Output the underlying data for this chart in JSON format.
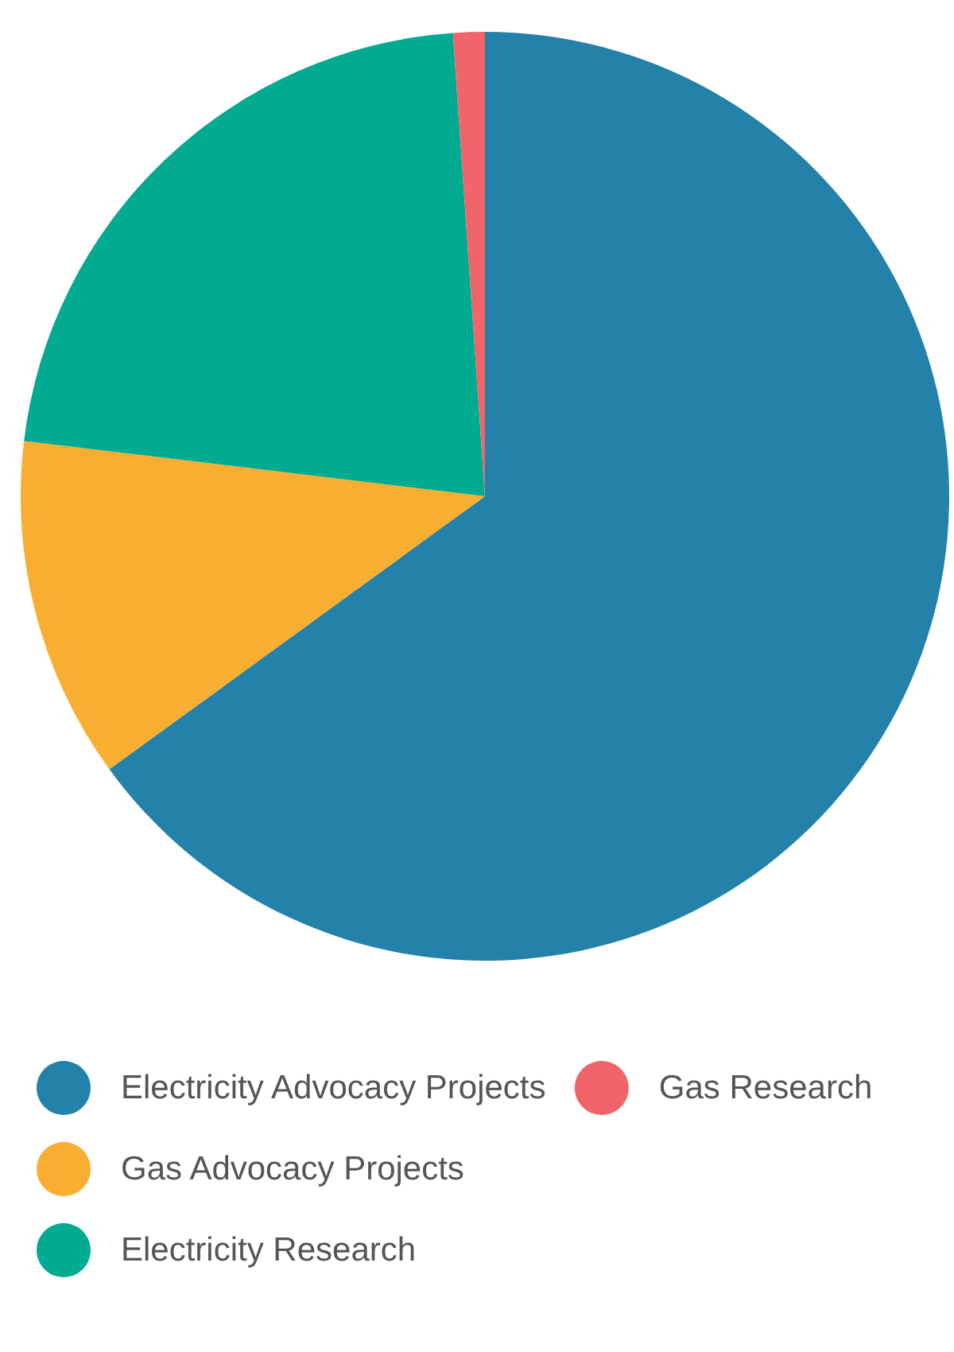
{
  "chart_data": {
    "type": "pie",
    "categories": [
      "Electricity Advocacy Projects",
      "Gas Advocacy Projects",
      "Electricity Research",
      "Gas Research"
    ],
    "values": [
      65.0,
      11.9,
      22.0,
      1.1
    ],
    "colors": [
      "#2481aa",
      "#f8ae30",
      "#00ab91",
      "#f0646a"
    ],
    "legend": "bottom left"
  }
}
